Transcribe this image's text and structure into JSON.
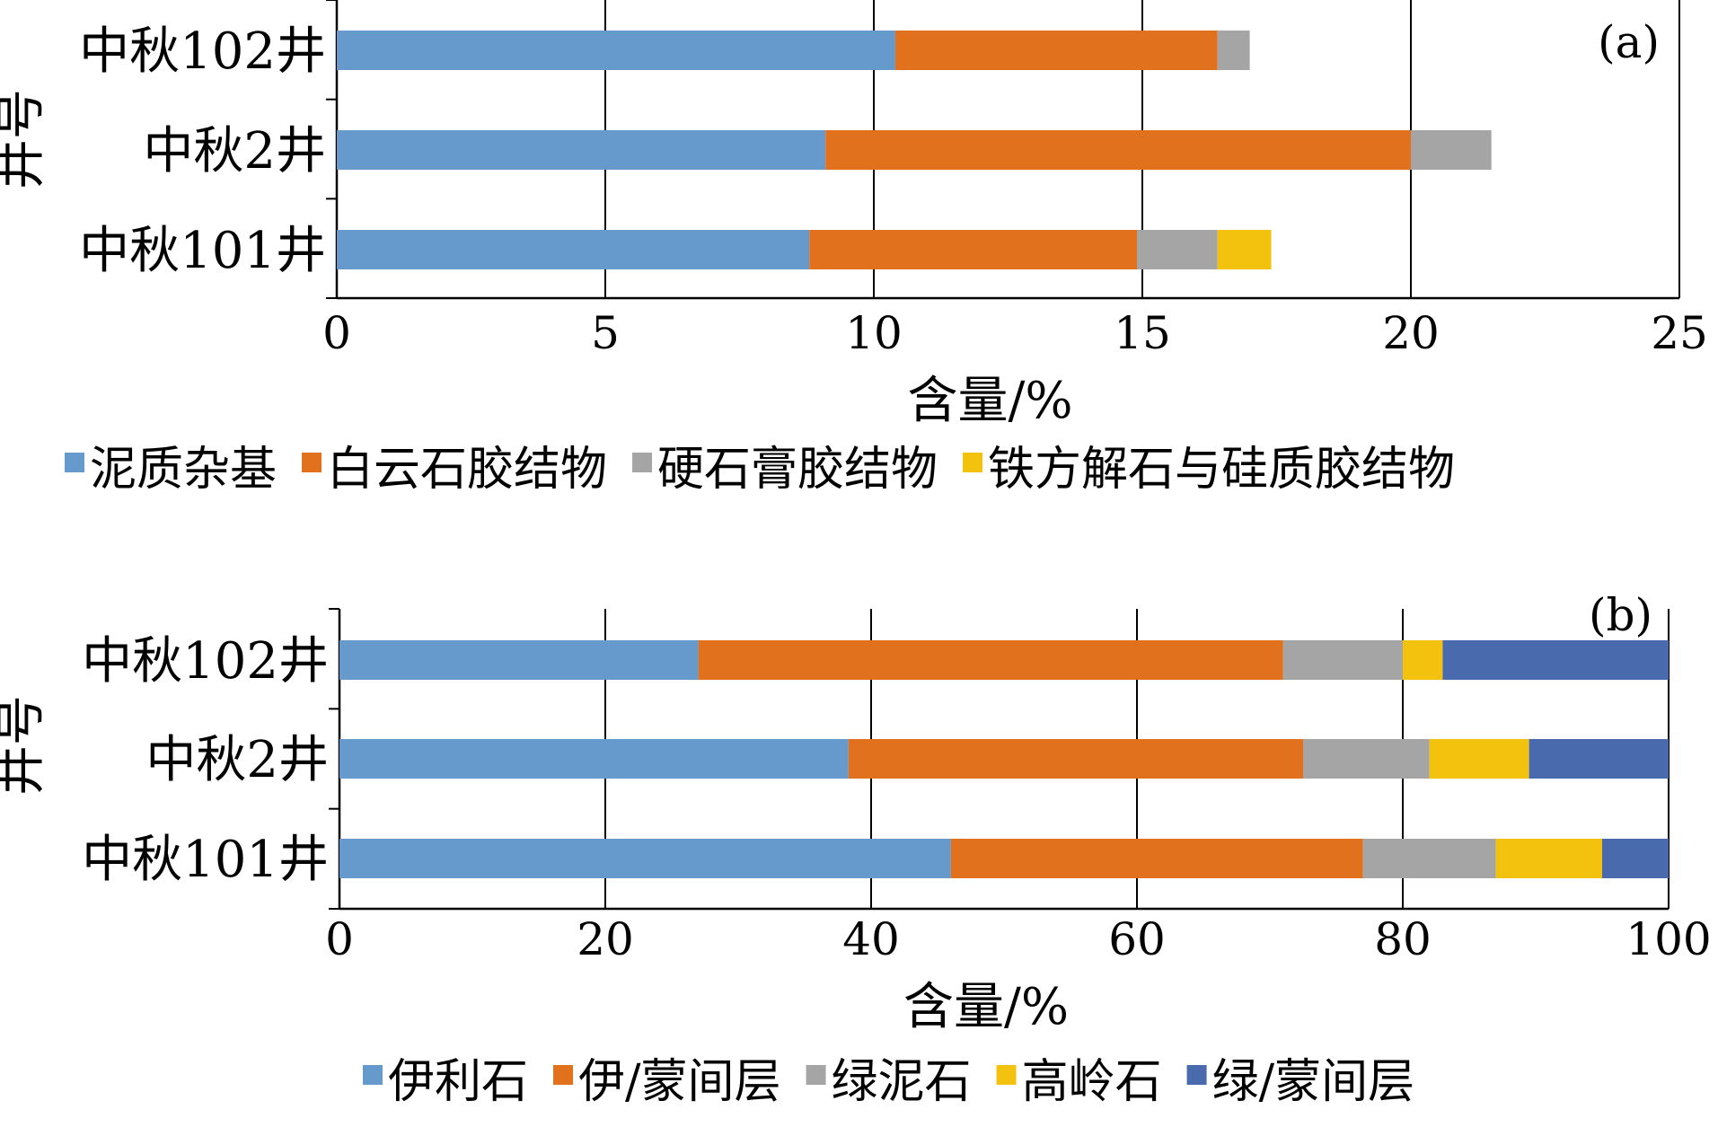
{
  "chart_data": [
    {
      "type": "bar",
      "orientation": "horizontal",
      "stacked": true,
      "panel_tag": "(a)",
      "categories": [
        "中秋102井",
        "中秋2井",
        "中秋101井"
      ],
      "series": [
        {
          "name": "泥质杂基",
          "color": "#6699CC",
          "values": [
            10.4,
            9.1,
            8.8
          ]
        },
        {
          "name": "白云石胶结物",
          "color": "#E2711D",
          "values": [
            6.0,
            10.9,
            6.1
          ]
        },
        {
          "name": "硬石膏胶结物",
          "color": "#A5A5A5",
          "values": [
            0.6,
            1.5,
            1.5
          ]
        },
        {
          "name": "铁方解石与硅质胶结物",
          "color": "#F2C20E",
          "values": [
            0,
            0,
            1.0
          ]
        }
      ],
      "xlabel": "含量/%",
      "ylabel": "井号",
      "xlim": [
        0,
        25
      ],
      "xticks": [
        "0",
        "5",
        "10",
        "15",
        "20",
        "25"
      ],
      "grid": "vertical",
      "legend_position": "bottom"
    },
    {
      "type": "bar",
      "orientation": "horizontal",
      "stacked": true,
      "panel_tag": "(b)",
      "categories": [
        "中秋102井",
        "中秋2井",
        "中秋101井"
      ],
      "series": [
        {
          "name": "伊利石",
          "color": "#6699CC",
          "values": [
            27,
            38.3,
            46
          ]
        },
        {
          "name": "伊/蒙间层",
          "color": "#E2711D",
          "values": [
            44,
            34.2,
            31
          ]
        },
        {
          "name": "绿泥石",
          "color": "#A5A5A5",
          "values": [
            9,
            9.5,
            10
          ]
        },
        {
          "name": "高岭石",
          "color": "#F2C20E",
          "values": [
            3,
            7.5,
            8
          ]
        },
        {
          "name": "绿/蒙间层",
          "color": "#4A6AAE",
          "values": [
            17,
            10.5,
            5
          ]
        }
      ],
      "xlabel": "含量/%",
      "ylabel": "井号",
      "xlim": [
        0,
        100
      ],
      "xticks": [
        "0",
        "20",
        "40",
        "60",
        "80",
        "100"
      ],
      "grid": "vertical",
      "legend_position": "bottom"
    }
  ]
}
